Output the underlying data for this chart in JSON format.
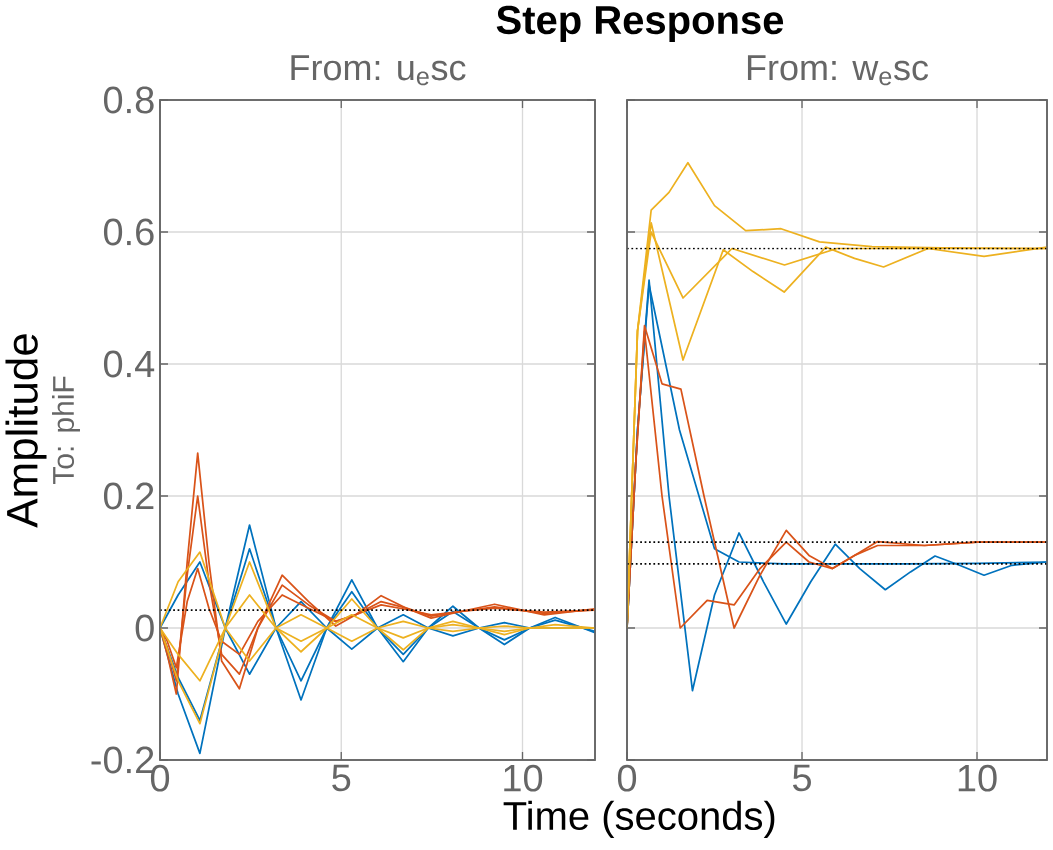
{
  "chart_data": [
    {
      "type": "line",
      "title": "Step Response",
      "subtitle": "From:  u$_{e}$sc",
      "xlabel": "Time (seconds)",
      "ylabel": "Amplitude",
      "annotations": [
        "To:  phiF"
      ],
      "xlim": [
        0,
        12
      ],
      "ylim": [
        -0.2,
        0.8
      ],
      "xticks": [
        0,
        5,
        10
      ],
      "yticks": [
        -0.2,
        0,
        0.2,
        0.4,
        0.6,
        0.8
      ],
      "grid": true,
      "marker": "none",
      "line_style": "solid",
      "ref_lines": [
        {
          "axis": "y",
          "value": 0.027,
          "color": "#000000",
          "line_style": "dotted"
        }
      ],
      "series": [
        {
          "color": "#0072bd",
          "x": [
            0,
            0.5,
            1.1,
            1.8,
            2.47,
            3.2,
            3.89,
            4.6,
            5.29,
            6,
            6.71,
            7.4,
            8.08,
            8.8,
            9.5,
            10.2,
            10.9,
            12
          ],
          "values": [
            0,
            -0.1,
            -0.19,
            0,
            0.156,
            0,
            -0.109,
            0,
            0.073,
            0,
            -0.051,
            0,
            0.033,
            0,
            -0.025,
            0,
            0.016,
            -0.007
          ]
        },
        {
          "color": "#0072bd",
          "x": [
            0,
            0.5,
            1.1,
            1.8,
            2.47,
            3.2,
            3.89,
            4.6,
            5.29,
            6,
            6.71,
            7.4,
            8.08,
            8.8,
            9.5,
            10.2,
            10.9,
            12
          ],
          "values": [
            0,
            -0.075,
            -0.14,
            0,
            0.12,
            0,
            -0.08,
            0,
            0.055,
            0,
            -0.04,
            0,
            0.025,
            0,
            -0.018,
            0,
            0.012,
            -0.005
          ]
        },
        {
          "color": "#0072bd",
          "x": [
            0,
            0.5,
            1.1,
            1.8,
            2.47,
            3.2,
            3.89,
            4.6,
            5.29,
            6,
            6.71,
            7.4,
            8.08,
            8.8,
            9.5,
            10.2,
            10.9,
            12
          ],
          "values": [
            0,
            0.05,
            0.1,
            0,
            -0.07,
            0,
            0.04,
            0,
            -0.032,
            0,
            0.02,
            0,
            -0.012,
            0,
            0.008,
            0,
            0,
            0
          ]
        },
        {
          "color": "#d95319",
          "x": [
            0,
            0.2,
            0.45,
            0.75,
            1.04,
            1.35,
            1.7,
            2.19,
            2.7,
            3.37,
            4.1,
            4.85,
            5.4,
            6.1,
            6.8,
            7.48,
            8.3,
            9.23,
            10.6,
            12
          ],
          "values": [
            0,
            -0.04,
            -0.1,
            0.1,
            0.265,
            0.1,
            -0.05,
            -0.092,
            0,
            0.08,
            0.04,
            0.003,
            0.02,
            0.049,
            0.03,
            0.015,
            0.025,
            0.036,
            0.02,
            0.029
          ]
        },
        {
          "color": "#d95319",
          "x": [
            0,
            0.2,
            0.45,
            0.75,
            1.04,
            1.35,
            1.7,
            2.19,
            2.7,
            3.37,
            4.1,
            4.85,
            5.4,
            6.1,
            6.8,
            7.48,
            8.3,
            9.23,
            10.6,
            12
          ],
          "values": [
            0,
            -0.03,
            -0.08,
            0.08,
            0.2,
            0.07,
            -0.04,
            -0.07,
            0,
            0.065,
            0.035,
            0.01,
            0.02,
            0.04,
            0.03,
            0.018,
            0.025,
            0.032,
            0.022,
            0.028
          ]
        },
        {
          "color": "#d95319",
          "x": [
            0,
            0.2,
            0.45,
            0.75,
            1.04,
            1.35,
            1.7,
            2.19,
            2.7,
            3.37,
            4.1,
            4.85,
            5.4,
            6.1,
            6.8,
            7.48,
            8.3,
            9.23,
            10.6,
            12
          ],
          "values": [
            0,
            -0.02,
            -0.06,
            0.04,
            0.09,
            0.03,
            -0.02,
            -0.04,
            0.01,
            0.05,
            0.03,
            0.01,
            0.02,
            0.035,
            0.028,
            0.02,
            0.025,
            0.03,
            0.024,
            0.027
          ]
        },
        {
          "color": "#edb120",
          "x": [
            0,
            0.5,
            1.1,
            1.8,
            2.47,
            3.2,
            3.89,
            4.6,
            5.29,
            6,
            6.71,
            7.4,
            8.08,
            8.8,
            9.5,
            10.2,
            10.9,
            12
          ],
          "values": [
            0,
            -0.08,
            -0.145,
            0,
            0.1,
            0,
            -0.036,
            0,
            0.044,
            0,
            -0.033,
            0,
            0.01,
            0,
            -0.01,
            0,
            0.005,
            0
          ]
        },
        {
          "color": "#edb120",
          "x": [
            0,
            0.5,
            1.1,
            1.8,
            2.47,
            3.2,
            3.89,
            4.6,
            5.29,
            6,
            6.71,
            7.4,
            8.08,
            8.8,
            9.5,
            10.2,
            10.9,
            12
          ],
          "values": [
            0,
            0.07,
            0.115,
            0,
            -0.05,
            0,
            0.02,
            0,
            -0.02,
            0,
            0.01,
            0,
            -0.005,
            0,
            0.003,
            0,
            0,
            0
          ]
        },
        {
          "color": "#edb120",
          "x": [
            0,
            0.5,
            1.1,
            1.8,
            2.47,
            3.2,
            3.89,
            4.6,
            5.29,
            6,
            6.71,
            7.4,
            8.08,
            8.8,
            9.5,
            10.2,
            10.9,
            12
          ],
          "values": [
            0,
            -0.04,
            -0.08,
            0,
            0.05,
            0,
            -0.02,
            0,
            0.02,
            0,
            -0.015,
            0,
            0.005,
            0,
            -0.005,
            0,
            0,
            0
          ]
        }
      ]
    },
    {
      "type": "line",
      "subtitle": "From:  w$_{e}$sc",
      "xlim": [
        0,
        12
      ],
      "ylim": [
        -0.2,
        0.8
      ],
      "xticks": [
        0,
        5,
        10
      ],
      "yticks": [
        -0.2,
        0,
        0.2,
        0.4,
        0.6,
        0.8
      ],
      "tick_labels": "x",
      "grid": true,
      "marker": "none",
      "line_style": "solid",
      "ref_lines": [
        {
          "axis": "y",
          "value": 0.575,
          "color": "#000000",
          "line_style": "dotted"
        },
        {
          "axis": "y",
          "value": 0.13,
          "color": "#000000",
          "line_style": "dotted"
        },
        {
          "axis": "y",
          "value": 0.097,
          "color": "#000000",
          "line_style": "dotted"
        }
      ],
      "series": [
        {
          "color": "#0072bd",
          "x": [
            0,
            0.3,
            0.63,
            1.2,
            1.87,
            2.5,
            3.2,
            3.9,
            4.55,
            5.25,
            5.95,
            6.65,
            7.38,
            8.1,
            8.8,
            9.5,
            10.2,
            11,
            12
          ],
          "values": [
            0,
            0.3,
            0.527,
            0.2,
            -0.095,
            0.05,
            0.144,
            0.07,
            0.006,
            0.07,
            0.127,
            0.09,
            0.058,
            0.085,
            0.109,
            0.095,
            0.08,
            0.095,
            0.1
          ]
        },
        {
          "color": "#0072bd",
          "x": [
            0,
            0.3,
            0.63,
            1.5,
            2.5,
            3.2,
            4.5,
            6,
            8,
            10,
            12
          ],
          "values": [
            0,
            0.3,
            0.52,
            0.3,
            0.12,
            0.1,
            0.097,
            0.097,
            0.097,
            0.098,
            0.1
          ]
        },
        {
          "color": "#d95319",
          "x": [
            0,
            0.25,
            0.5,
            1.0,
            1.54,
            2.2,
            3.06,
            3.8,
            4.55,
            5.2,
            5.87,
            6.5,
            7.16,
            8.5,
            10,
            12
          ],
          "values": [
            0,
            0.25,
            0.458,
            0.37,
            0.362,
            0.2,
            0.0,
            0.08,
            0.148,
            0.11,
            0.09,
            0.11,
            0.131,
            0.125,
            0.13,
            0.13
          ]
        },
        {
          "color": "#d95319",
          "x": [
            0,
            0.25,
            0.5,
            1.0,
            1.52,
            2.29,
            3.06,
            3.8,
            4.55,
            5.2,
            5.87,
            6.5,
            7.16,
            8.5,
            10,
            12
          ],
          "values": [
            0,
            0.25,
            0.45,
            0.2,
            0.0,
            0.042,
            0.035,
            0.09,
            0.13,
            0.1,
            0.09,
            0.11,
            0.125,
            0.125,
            0.13,
            0.13
          ]
        },
        {
          "color": "#edb120",
          "x": [
            0,
            0.3,
            0.69,
            1.2,
            1.74,
            2.5,
            3.39,
            4.4,
            5.5,
            7,
            9,
            12
          ],
          "values": [
            0,
            0.45,
            0.633,
            0.66,
            0.705,
            0.64,
            0.602,
            0.605,
            0.585,
            0.578,
            0.576,
            0.575
          ]
        },
        {
          "color": "#edb120",
          "x": [
            0,
            0.3,
            0.69,
            1.6,
            2.75,
            3.6,
            4.49,
            5.68,
            6.5,
            7.33,
            8.6,
            10.2,
            12
          ],
          "values": [
            0,
            0.45,
            0.614,
            0.406,
            0.573,
            0.54,
            0.509,
            0.577,
            0.56,
            0.547,
            0.575,
            0.563,
            0.577
          ]
        },
        {
          "color": "#edb120",
          "x": [
            0,
            0.3,
            0.69,
            1.6,
            3,
            4.5,
            6,
            12
          ],
          "values": [
            0,
            0.45,
            0.6,
            0.5,
            0.575,
            0.55,
            0.575,
            0.575
          ]
        }
      ]
    }
  ]
}
